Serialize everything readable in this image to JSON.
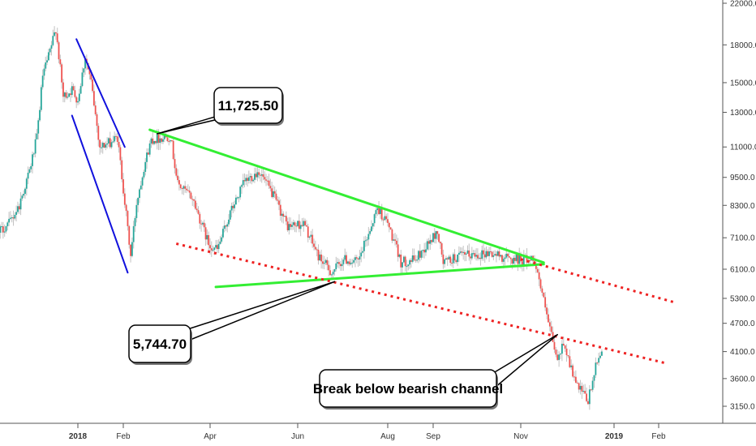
{
  "chart_data": {
    "type": "candlestick",
    "title": "",
    "xlabel": "",
    "ylabel": "",
    "y_scale": "log",
    "ylim": [
      2900,
      22500
    ],
    "x_range": [
      "2017-10-18",
      "2019-02-24"
    ],
    "grid": false,
    "legend": "none",
    "colors": {
      "up": "#26a69a",
      "down": "#ef5350",
      "wick": "#c2c2c2",
      "blue_channel": "#1111dd",
      "triangle": "#33ee33",
      "bear_channel": "#ee2222",
      "axis": "#555555",
      "callout_border": "#000000"
    },
    "y_ticks": [
      "3150.0",
      "3600.0",
      "4100.0",
      "4700.0",
      "5300.0",
      "6100.0",
      "7100.0",
      "8300.0",
      "9500.0",
      "11000.0",
      "13000.0",
      "15000.0",
      "18000.0",
      "22000.0"
    ],
    "x_ticks": [
      {
        "label": "2018",
        "date": "2018-01-01",
        "bold": true
      },
      {
        "label": "Feb",
        "date": "2018-02-01",
        "bold": false
      },
      {
        "label": "Apr",
        "date": "2018-04-01",
        "bold": false
      },
      {
        "label": "Jun",
        "date": "2018-06-01",
        "bold": false
      },
      {
        "label": "Aug",
        "date": "2018-08-01",
        "bold": false
      },
      {
        "label": "Sep",
        "date": "2018-09-01",
        "bold": false
      },
      {
        "label": "Nov",
        "date": "2018-11-01",
        "bold": false
      },
      {
        "label": "2019",
        "date": "2019-01-01",
        "bold": true
      },
      {
        "label": "Feb",
        "date": "2019-02-01",
        "bold": false
      }
    ],
    "price_path": [
      [
        "2017-10-18",
        5700
      ],
      [
        "2017-10-25",
        5500
      ],
      [
        "2017-11-01",
        6700
      ],
      [
        "2017-11-08",
        7300
      ],
      [
        "2017-11-15",
        7600
      ],
      [
        "2017-11-22",
        8300
      ],
      [
        "2017-11-29",
        9800
      ],
      [
        "2017-12-04",
        11500
      ],
      [
        "2017-12-08",
        15500
      ],
      [
        "2017-12-12",
        17000
      ],
      [
        "2017-12-17",
        19500
      ],
      [
        "2017-12-22",
        14000
      ],
      [
        "2017-12-28",
        14500
      ],
      [
        "2018-01-01",
        13800
      ],
      [
        "2018-01-06",
        17000
      ],
      [
        "2018-01-10",
        15000
      ],
      [
        "2018-01-16",
        11000
      ],
      [
        "2018-01-22",
        11200
      ],
      [
        "2018-01-28",
        11500
      ],
      [
        "2018-02-01",
        9000
      ],
      [
        "2018-02-06",
        6500
      ],
      [
        "2018-02-10",
        8400
      ],
      [
        "2018-02-15",
        10000
      ],
      [
        "2018-02-20",
        11400
      ],
      [
        "2018-03-05",
        11600
      ],
      [
        "2018-03-10",
        9200
      ],
      [
        "2018-03-20",
        8600
      ],
      [
        "2018-03-31",
        6900
      ],
      [
        "2018-04-06",
        6700
      ],
      [
        "2018-04-15",
        8000
      ],
      [
        "2018-04-25",
        9300
      ],
      [
        "2018-05-05",
        9800
      ],
      [
        "2018-05-15",
        8700
      ],
      [
        "2018-05-25",
        7500
      ],
      [
        "2018-06-05",
        7600
      ],
      [
        "2018-06-15",
        6500
      ],
      [
        "2018-06-24",
        6000
      ],
      [
        "2018-07-02",
        6400
      ],
      [
        "2018-07-12",
        6300
      ],
      [
        "2018-07-25",
        8200
      ],
      [
        "2018-08-01",
        7600
      ],
      [
        "2018-08-10",
        6300
      ],
      [
        "2018-08-20",
        6400
      ],
      [
        "2018-09-04",
        7300
      ],
      [
        "2018-09-08",
        6300
      ],
      [
        "2018-09-20",
        6500
      ],
      [
        "2018-10-10",
        6600
      ],
      [
        "2018-10-25",
        6400
      ],
      [
        "2018-11-10",
        6400
      ],
      [
        "2018-11-14",
        5600
      ],
      [
        "2018-11-19",
        4700
      ],
      [
        "2018-11-25",
        3900
      ],
      [
        "2018-11-29",
        4300
      ],
      [
        "2018-12-07",
        3500
      ],
      [
        "2018-12-15",
        3230
      ],
      [
        "2018-12-20",
        3800
      ],
      [
        "2018-12-24",
        4150
      ]
    ],
    "trendlines": [
      {
        "name": "blue-upper",
        "style": "solid",
        "color": "blue",
        "points": [
          [
            "2017-12-31",
            18500
          ],
          [
            "2018-02-02",
            11000
          ]
        ]
      },
      {
        "name": "blue-lower",
        "style": "solid",
        "color": "blue",
        "points": [
          [
            "2017-12-28",
            12800
          ],
          [
            "2018-02-04",
            6000
          ]
        ]
      },
      {
        "name": "triangle-upper",
        "style": "solid",
        "color": "green",
        "points": [
          [
            "2018-02-19",
            11950
          ],
          [
            "2018-11-16",
            6300
          ]
        ]
      },
      {
        "name": "triangle-lower",
        "style": "solid",
        "color": "green",
        "points": [
          [
            "2018-04-05",
            5600
          ],
          [
            "2018-11-16",
            6250
          ]
        ]
      },
      {
        "name": "bear-upper",
        "style": "dotted",
        "color": "red",
        "points": [
          [
            "2018-11-01",
            6400
          ],
          [
            "2019-02-12",
            5200
          ]
        ]
      },
      {
        "name": "bear-lower",
        "style": "dotted",
        "color": "red",
        "points": [
          [
            "2018-03-09",
            6900
          ],
          [
            "2019-02-07",
            3870
          ]
        ]
      }
    ],
    "annotations": [
      {
        "text": "11,725.50",
        "target": [
          "2018-02-24",
          11725.5
        ]
      },
      {
        "text": "5,744.70",
        "target": [
          "2018-06-26",
          5744.7
        ]
      },
      {
        "text": "Break below bearish channel",
        "target": [
          "2018-11-25",
          4450
        ]
      }
    ]
  }
}
